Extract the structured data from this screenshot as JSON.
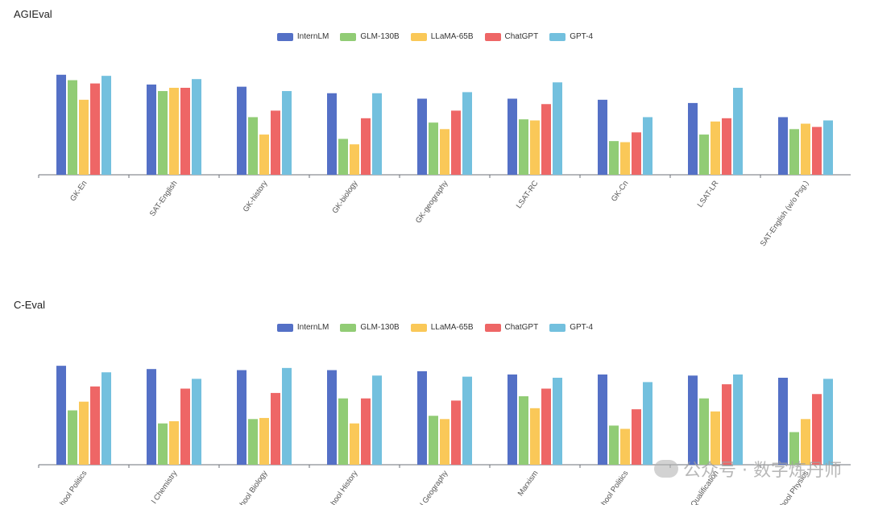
{
  "colors": {
    "InternLM": "#5470c6",
    "GLM-130B": "#91cc75",
    "LLaMA-65B": "#fac858",
    "ChatGPT": "#ee6666",
    "GPT-4": "#73c0de"
  },
  "watermark": {
    "text": "公众号 · 数字炼丹师",
    "icon": "wechat-icon"
  },
  "chart_data": [
    {
      "type": "bar",
      "title": "AGIEval",
      "categories": [
        "GK-En",
        "SAT-English",
        "GK-history",
        "GK-biology",
        "GK-geography",
        "LSAT-RC",
        "GK-Cn",
        "LSAT-LR",
        "SAT-English (w/o Psg.)"
      ],
      "series": [
        {
          "name": "InternLM",
          "values": [
            92,
            83,
            81,
            75,
            70,
            70,
            69,
            66,
            53
          ]
        },
        {
          "name": "GLM-130B",
          "values": [
            87,
            77,
            53,
            33,
            48,
            51,
            31,
            37,
            42
          ]
        },
        {
          "name": "LLaMA-65B",
          "values": [
            69,
            80,
            37,
            28,
            42,
            50,
            30,
            49,
            47
          ]
        },
        {
          "name": "ChatGPT",
          "values": [
            84,
            80,
            59,
            52,
            59,
            65,
            39,
            52,
            44
          ]
        },
        {
          "name": "GPT-4",
          "values": [
            91,
            88,
            77,
            75,
            76,
            85,
            53,
            80,
            50
          ]
        }
      ],
      "ylim": [
        0,
        100
      ],
      "legend": "top-center",
      "grid": false
    },
    {
      "type": "bar",
      "title": "C-Eval",
      "categories": [
        "High School Politics",
        "High School Chemistry",
        "High School Biology",
        "High School History",
        "High School Geography",
        "Marxism",
        "Middle School Politics",
        "Qualification",
        "High School Physics"
      ],
      "tick_labels_visible": [
        "hool Politics",
        "l Chemistry",
        "hool Biology",
        "hool History",
        "l Geography",
        "Marxism",
        "hool Politics",
        "Qualification",
        "hool Physics"
      ],
      "series": [
        {
          "name": "InternLM",
          "values": [
            91,
            88,
            87,
            87,
            86,
            83,
            83,
            82,
            80
          ]
        },
        {
          "name": "GLM-130B",
          "values": [
            50,
            38,
            42,
            61,
            45,
            63,
            36,
            61,
            30
          ]
        },
        {
          "name": "LLaMA-65B",
          "values": [
            58,
            40,
            43,
            38,
            42,
            52,
            33,
            49,
            42
          ]
        },
        {
          "name": "ChatGPT",
          "values": [
            72,
            70,
            66,
            61,
            59,
            70,
            51,
            74,
            65
          ]
        },
        {
          "name": "GPT-4",
          "values": [
            85,
            79,
            89,
            82,
            81,
            80,
            76,
            83,
            79
          ]
        }
      ],
      "ylim": [
        0,
        100
      ],
      "legend": "top-center",
      "grid": false
    }
  ]
}
